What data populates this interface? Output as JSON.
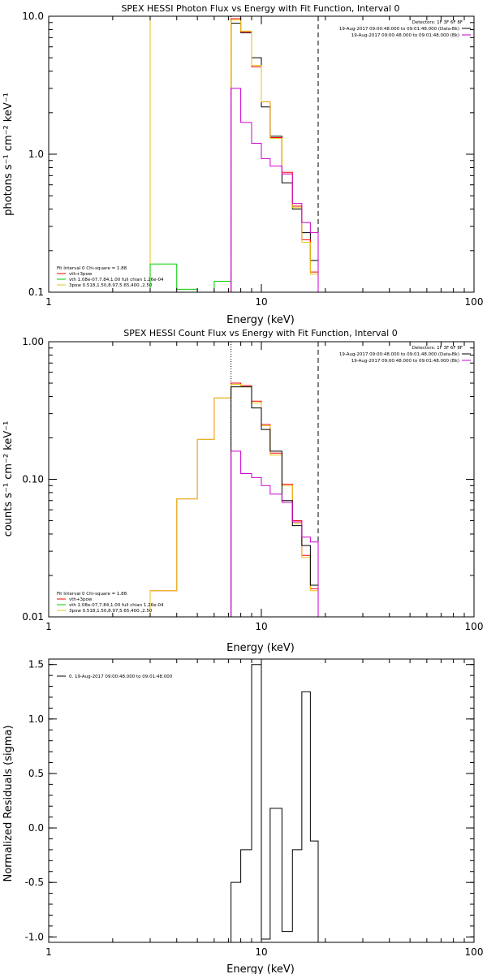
{
  "chart_data": [
    {
      "type": "line",
      "title": "SPEX HESSI Photon Flux vs Energy with Fit Function, Interval 0",
      "xlabel": "Energy (keV)",
      "ylabel": "photons s⁻¹ cm⁻² keV⁻¹",
      "xscale": "log",
      "yscale": "log",
      "xlim": [
        1,
        100
      ],
      "ylim": [
        0.1,
        10
      ],
      "x_ticks": [
        "1",
        "10",
        "100"
      ],
      "y_ticks": [
        "0.1",
        "1.0",
        "10.0"
      ],
      "grid": false,
      "vlines": [
        {
          "x": 3.0,
          "style": "solid",
          "color": "#e6c619"
        },
        {
          "x": 7.2,
          "style": "dotted",
          "color": "#000000"
        },
        {
          "x": 18.5,
          "style": "dashed",
          "color": "#000000"
        }
      ],
      "header_lines": [
        "Detectors: 1F 3F 6F 8F",
        "19-Aug-2017 09:00:48.000 to 09:01:48.000 (Data-Bk)",
        "19-Aug-2017 09:00:48.000 to 09:01:48.000 (Bk)"
      ],
      "legend_title": "Fit Interval 0   Chi-square = 1.88",
      "legend": [
        {
          "label": "vth+3pow",
          "color": "#ff0000"
        },
        {
          "label": "vth 1.08e-07,7.84,1.00  full chian 1.26e-04",
          "color": "#00cc00"
        },
        {
          "label": "3pow 0.518,1.50,8.97,5.65,400.,2.50",
          "color": "#e6c619"
        }
      ],
      "legend_placement": "bottom-left",
      "bin_edges": [
        3.0,
        4.0,
        5.0,
        6.0,
        7.2,
        8.0,
        9.0,
        10.0,
        11.0,
        12.5,
        14.0,
        15.5,
        17.0,
        18.5
      ],
      "series": [
        {
          "color": "#00cc00",
          "bins": [
            [
              3.0,
              4.0,
              0.16
            ],
            [
              4.0,
              5.0,
              0.105
            ],
            [
              5.0,
              6.0,
              0.095
            ],
            [
              6.0,
              7.2,
              0.12
            ],
            [
              7.2,
              8.0,
              0.09
            ]
          ]
        },
        {
          "color": "#000000",
          "values": [
            null,
            null,
            null,
            null,
            8.9,
            7.6,
            5.0,
            2.2,
            1.35,
            0.62,
            0.4,
            0.27,
            0.17
          ]
        },
        {
          "color": "#ff0000",
          "values": [
            null,
            null,
            null,
            null,
            9.6,
            7.7,
            4.3,
            2.4,
            1.32,
            0.74,
            0.42,
            0.24,
            0.14
          ]
        },
        {
          "color": "#e6c619",
          "values": [
            null,
            null,
            null,
            null,
            9.4,
            7.8,
            4.4,
            2.4,
            1.3,
            0.72,
            0.41,
            0.23,
            0.135
          ]
        },
        {
          "color": "#cc00cc",
          "values": [
            null,
            null,
            null,
            null,
            3.0,
            1.7,
            1.2,
            0.93,
            0.82,
            0.72,
            0.44,
            0.32,
            0.27
          ]
        }
      ]
    },
    {
      "type": "line",
      "title": "SPEX HESSI Count Flux vs Energy with Fit Function, Interval 0",
      "xlabel": "Energy (keV)",
      "ylabel": "counts s⁻¹ cm⁻² keV⁻¹",
      "xscale": "log",
      "yscale": "log",
      "xlim": [
        1,
        100
      ],
      "ylim": [
        0.01,
        1
      ],
      "x_ticks": [
        "1",
        "10",
        "100"
      ],
      "y_ticks": [
        "0.01",
        "0.10",
        "1.00"
      ],
      "grid": false,
      "vlines": [
        {
          "x": 7.2,
          "style": "dotted",
          "color": "#000000"
        },
        {
          "x": 18.5,
          "style": "dashed",
          "color": "#000000"
        }
      ],
      "header_lines": [
        "Detectors: 1F 3F 6F 8F",
        "19-Aug-2017 09:00:48.000 to 09:01:48.000 (Data-Bk)",
        "19-Aug-2017 09:00:48.000 to 09:01:48.000 (Bk)"
      ],
      "legend_title": "Fit Interval 0   Chi-square = 1.88",
      "legend": [
        {
          "label": "vth+3pow",
          "color": "#ff0000"
        },
        {
          "label": "vth 1.08e-07,7.84,1.00  full chian 1.26e-04",
          "color": "#00cc00"
        },
        {
          "label": "3pow 0.518,1.50,8.97,5.65,400.,2.50",
          "color": "#e6c619"
        }
      ],
      "legend_placement": "bottom-left",
      "bin_edges": [
        3.0,
        4.0,
        5.0,
        6.0,
        7.2,
        8.0,
        9.0,
        10.0,
        11.0,
        12.5,
        14.0,
        15.5,
        17.0,
        18.5
      ],
      "series": [
        {
          "color": "#ff0000",
          "values": [
            0.0155,
            0.072,
            0.195,
            0.39,
            0.5,
            0.48,
            0.37,
            0.25,
            0.155,
            0.092,
            0.05,
            0.028,
            0.016
          ]
        },
        {
          "color": "#e6c619",
          "values": [
            0.0155,
            0.072,
            0.195,
            0.39,
            0.49,
            0.47,
            0.36,
            0.245,
            0.15,
            0.09,
            0.048,
            0.027,
            0.0155
          ]
        },
        {
          "color": "#000000",
          "values": [
            null,
            null,
            null,
            null,
            0.47,
            0.47,
            0.33,
            0.23,
            0.16,
            0.07,
            0.046,
            0.033,
            0.017
          ]
        },
        {
          "color": "#cc00cc",
          "values": [
            null,
            null,
            null,
            null,
            0.16,
            0.11,
            0.103,
            0.09,
            0.078,
            0.068,
            0.049,
            0.038,
            0.035
          ]
        }
      ]
    },
    {
      "type": "line",
      "title": "",
      "xlabel": "Energy (keV)",
      "ylabel": "Normalized Residuals (sigma)",
      "xscale": "log",
      "yscale": "linear",
      "xlim": [
        1,
        100
      ],
      "ylim": [
        -1.05,
        1.55
      ],
      "x_ticks": [
        "1",
        "10",
        "100"
      ],
      "y_ticks": [
        "-1.0",
        "-0.5",
        "0.0",
        "0.5",
        "1.0",
        "1.5"
      ],
      "grid": false,
      "legend": [
        {
          "label": "0. 19-Aug-2017 09:00:48.000 to 09:01:48.000",
          "color": "#000000"
        }
      ],
      "legend_placement": "top-left",
      "bin_edges": [
        7.2,
        8.0,
        9.0,
        10.0,
        11.0,
        12.5,
        14.0,
        15.5,
        17.0,
        18.5
      ],
      "series": [
        {
          "color": "#000000",
          "values": [
            -0.5,
            -0.2,
            1.5,
            -1.02,
            0.18,
            -0.95,
            -0.2,
            1.25,
            -0.12
          ]
        }
      ]
    }
  ]
}
